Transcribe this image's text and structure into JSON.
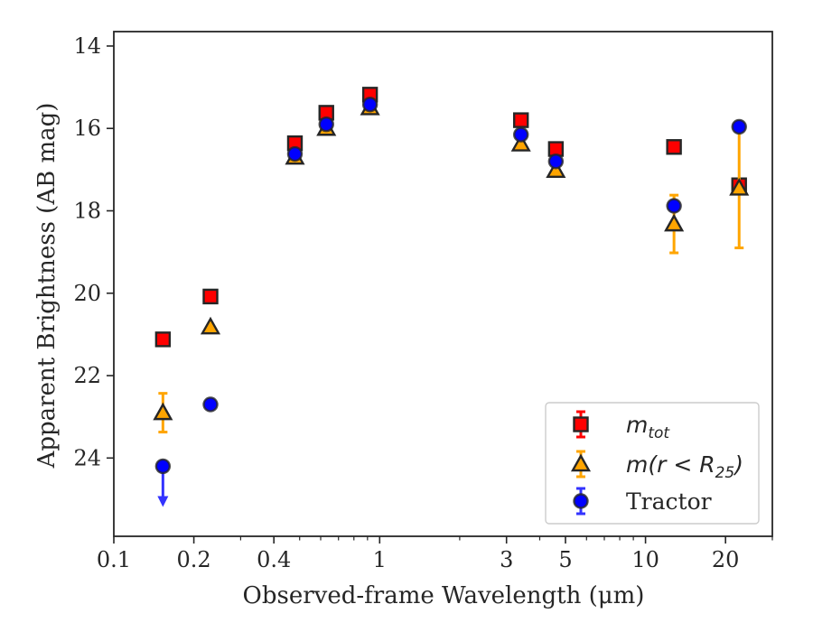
{
  "chart_data": {
    "type": "scatter",
    "title": "",
    "xlabel": "Observed-frame Wavelength (μm)",
    "ylabel": "Apparent Brightness (AB mag)",
    "xscale": "log",
    "xlim": [
      0.1,
      30
    ],
    "ylim": [
      25.9,
      13.65
    ],
    "y_inverted": true,
    "xticks": [
      0.1,
      0.2,
      0.4,
      1,
      3,
      5,
      10,
      20
    ],
    "xtick_labels": [
      "0.1",
      "0.2",
      "0.4",
      "1",
      "3",
      "5",
      "10",
      "20"
    ],
    "yticks": [
      14,
      16,
      18,
      20,
      22,
      24
    ],
    "ytick_labels": [
      "14",
      "16",
      "18",
      "20",
      "22",
      "24"
    ],
    "grid": false,
    "legend_position": "bottom-right",
    "series": [
      {
        "name": "m_tot",
        "label_main": "m",
        "label_sub": "tot",
        "marker": "square",
        "color": "#ff0000",
        "edge_color": "#262626",
        "errorbar_color": "#ff0000",
        "points": [
          {
            "x": 0.153,
            "y": 21.12,
            "err": 0
          },
          {
            "x": 0.231,
            "y": 20.08,
            "err": 0
          },
          {
            "x": 0.48,
            "y": 16.36,
            "err": 0
          },
          {
            "x": 0.63,
            "y": 15.62,
            "err": 0
          },
          {
            "x": 0.92,
            "y": 15.18,
            "err": 0
          },
          {
            "x": 3.4,
            "y": 15.8,
            "err": 0
          },
          {
            "x": 4.6,
            "y": 16.5,
            "err": 0
          },
          {
            "x": 12.8,
            "y": 16.45,
            "err": 0
          },
          {
            "x": 22.5,
            "y": 17.38,
            "err": 0
          }
        ]
      },
      {
        "name": "m(r < R_25)",
        "label_main": "m(r < R",
        "label_sub": "25",
        "label_tail": ")",
        "marker": "triangle",
        "color": "#ffa500",
        "edge_color": "#262626",
        "errorbar_color": "#ffa500",
        "points": [
          {
            "x": 0.153,
            "y": 22.9,
            "err": 0.47
          },
          {
            "x": 0.231,
            "y": 20.82,
            "err": 0
          },
          {
            "x": 0.48,
            "y": 16.7,
            "err": 0
          },
          {
            "x": 0.63,
            "y": 16.0,
            "err": 0
          },
          {
            "x": 0.92,
            "y": 15.5,
            "err": 0
          },
          {
            "x": 3.4,
            "y": 16.38,
            "err": 0
          },
          {
            "x": 4.6,
            "y": 17.02,
            "err": 0
          },
          {
            "x": 12.8,
            "y": 18.32,
            "err": 0.7
          },
          {
            "x": 22.5,
            "y": 17.45,
            "err": 1.45
          }
        ]
      },
      {
        "name": "Tractor",
        "label_main": "Tractor",
        "marker": "circle",
        "color": "#0000ff",
        "edge_color": "#262626",
        "errorbar_color": "#3333ff",
        "points": [
          {
            "x": 0.153,
            "y": 24.2,
            "err": 0,
            "upper_limit": true
          },
          {
            "x": 0.231,
            "y": 22.7,
            "err": 0
          },
          {
            "x": 0.48,
            "y": 16.62,
            "err": 0
          },
          {
            "x": 0.63,
            "y": 15.9,
            "err": 0
          },
          {
            "x": 0.92,
            "y": 15.42,
            "err": 0
          },
          {
            "x": 3.4,
            "y": 16.15,
            "err": 0
          },
          {
            "x": 4.6,
            "y": 16.8,
            "err": 0
          },
          {
            "x": 12.8,
            "y": 17.88,
            "err": 0
          },
          {
            "x": 22.5,
            "y": 15.96,
            "err": 0
          }
        ]
      }
    ]
  }
}
